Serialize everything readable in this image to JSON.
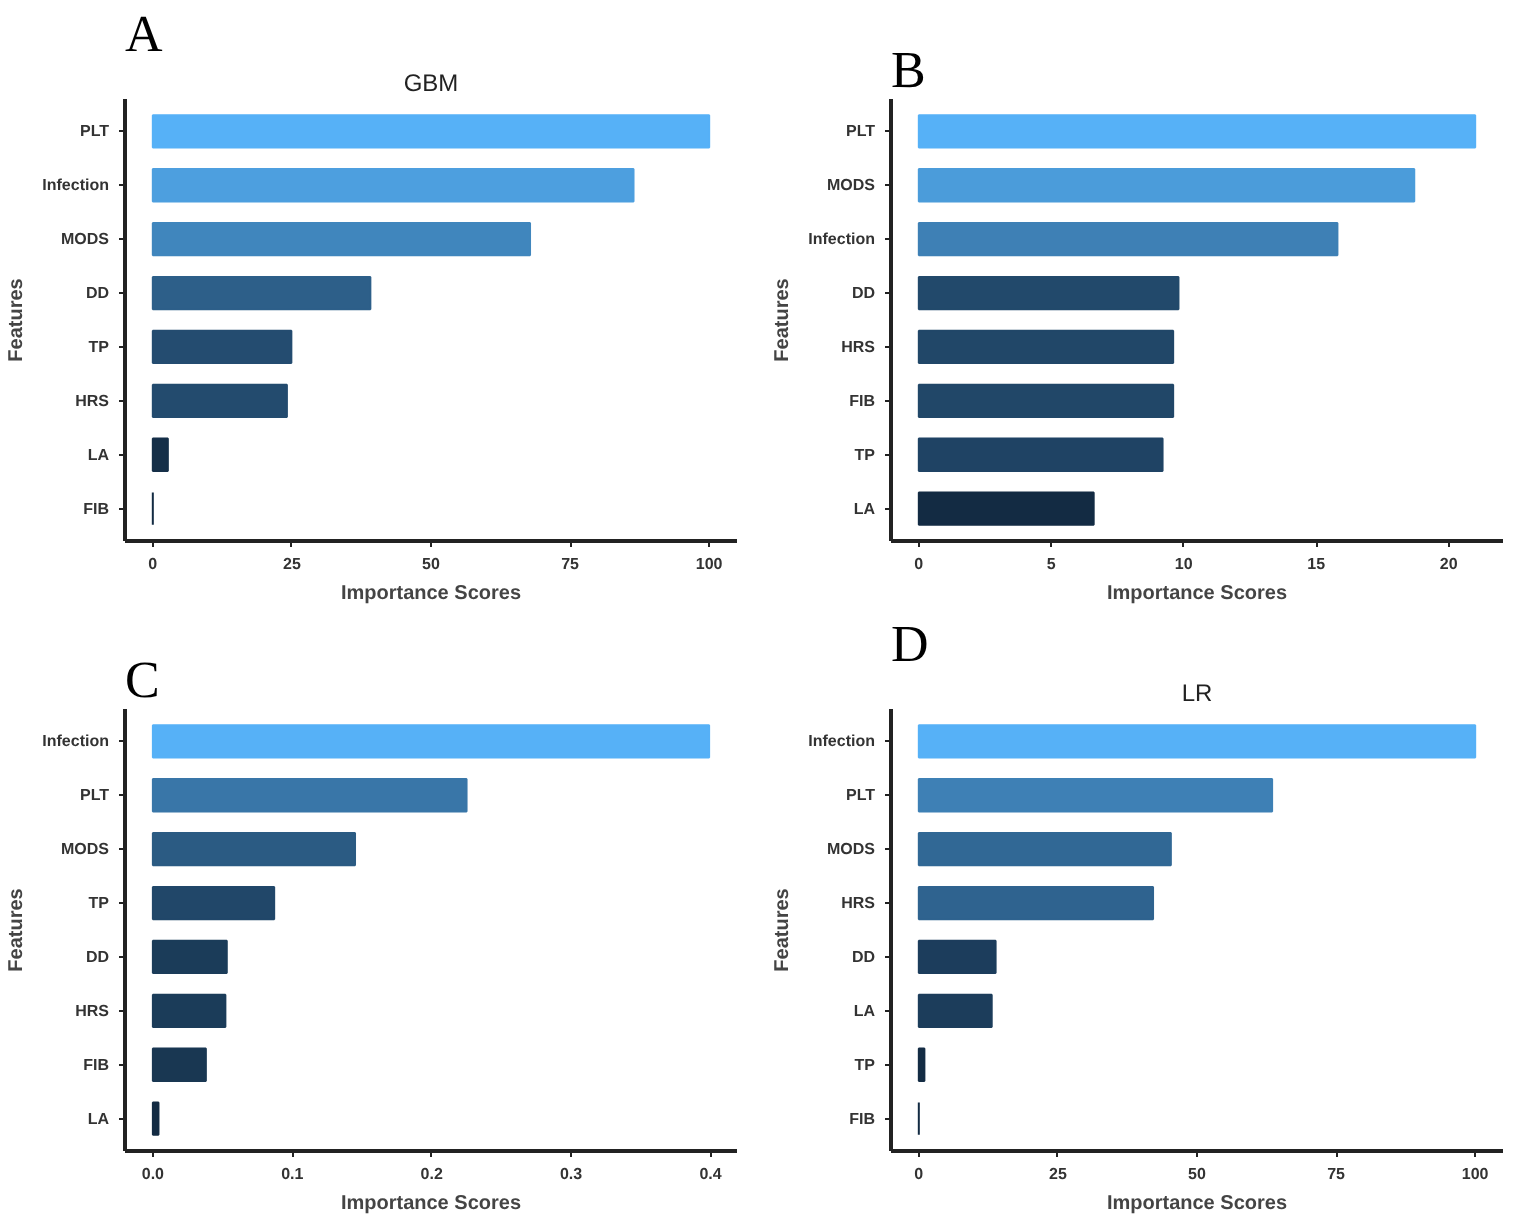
{
  "chart_data": [
    {
      "type": "bar",
      "orientation": "horizontal",
      "title": "GBM",
      "annotations": [
        "A"
      ],
      "xlabel": "Importance Scores",
      "ylabel": "Features",
      "categories": [
        "PLT",
        "Infection",
        "MODS",
        "DD",
        "TP",
        "HRS",
        "LA",
        "FIB"
      ],
      "values": [
        100,
        86.4,
        67.8,
        39.1,
        24.9,
        24.1,
        2.7,
        0
      ],
      "colors": [
        "#56b1f7",
        "#4d9fdf",
        "#4086bd",
        "#2d5f89",
        "#244c70",
        "#234b6e",
        "#152f48",
        "#132b43"
      ],
      "xlim": [
        -5,
        105
      ],
      "xticks": [
        0,
        25,
        50,
        75,
        100
      ]
    },
    {
      "type": "bar",
      "orientation": "horizontal",
      "annotations": [
        "B"
      ],
      "xlabel": "Importance Scores",
      "ylabel": "Features",
      "categories": [
        "PLT",
        "MODS",
        "Infection",
        "DD",
        "HRS",
        "FIB",
        "TP",
        "LA"
      ],
      "values": [
        21.0,
        18.7,
        15.8,
        9.8,
        9.6,
        9.6,
        9.2,
        6.6
      ],
      "colors": [
        "#56b1f7",
        "#4b9cda",
        "#3e80b5",
        "#22496b",
        "#214768",
        "#214768",
        "#1f4364",
        "#132b43"
      ],
      "xlim": [
        -1.05,
        22.05
      ],
      "xticks": [
        0,
        5,
        10,
        15,
        20
      ]
    },
    {
      "type": "bar",
      "orientation": "horizontal",
      "annotations": [
        "C"
      ],
      "xlabel": "Importance Scores",
      "ylabel": "Features",
      "categories": [
        "Infection",
        "PLT",
        "MODS",
        "TP",
        "DD",
        "HRS",
        "FIB",
        "LA"
      ],
      "values": [
        0.399,
        0.225,
        0.145,
        0.087,
        0.053,
        0.052,
        0.038,
        0.004
      ],
      "colors": [
        "#56b1f7",
        "#3976a8",
        "#2b5b83",
        "#214769",
        "#1b3c59",
        "#1b3c59",
        "#193752",
        "#132b43"
      ],
      "xlim": [
        -0.02,
        0.419
      ],
      "xticks": [
        {
          "value": 0,
          "label": "0.0"
        },
        0.1,
        0.2,
        0.3,
        0.4
      ]
    },
    {
      "type": "bar",
      "orientation": "horizontal",
      "title": "LR",
      "annotations": [
        "D"
      ],
      "xlabel": "Importance Scores",
      "ylabel": "Features",
      "categories": [
        "Infection",
        "PLT",
        "MODS",
        "HRS",
        "DD",
        "LA",
        "TP",
        "FIB"
      ],
      "values": [
        100,
        63.5,
        45.3,
        42.1,
        13.8,
        13.1,
        1.0,
        0
      ],
      "colors": [
        "#56b1f7",
        "#3e80b5",
        "#316895",
        "#2f638f",
        "#1c3d5c",
        "#1c3d5b",
        "#142c44",
        "#132b43"
      ],
      "xlim": [
        -5,
        105
      ],
      "xticks": [
        0,
        25,
        50,
        75,
        100
      ]
    }
  ]
}
